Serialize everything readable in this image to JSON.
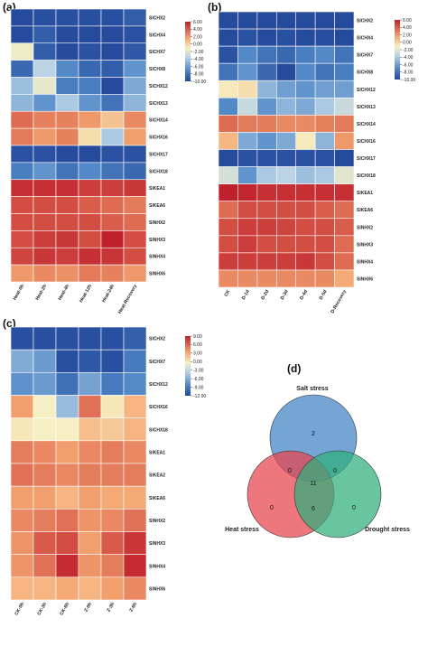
{
  "panels": {
    "a": {
      "label": "(a)",
      "columns": [
        "Heat-0h",
        "Heat-2h",
        "Heat-4h",
        "Heat-12h",
        "Heat-24h",
        "Heat-Recovery"
      ],
      "rows": [
        "SlCHX2",
        "SlCHX4",
        "SlCHX7",
        "SlCHX8",
        "SlCHX12",
        "SlCHX13",
        "SlCHX14",
        "SlCHX16",
        "SlCHX17",
        "SlCHX18",
        "SlKEA1",
        "SlKEA6",
        "SlNHX2",
        "SlNHX3",
        "SlNHX4",
        "SlNHX6"
      ],
      "values": [
        [
          -9.8,
          -9.6,
          -9.6,
          -9.6,
          -9.6,
          -9.0
        ],
        [
          -9.8,
          -9.0,
          -9.8,
          -9.8,
          -9.8,
          -9.5
        ],
        [
          -1.5,
          -9.0,
          -9.8,
          -9.5,
          -9.8,
          -9.2
        ],
        [
          -8.5,
          -3.5,
          -7.0,
          -8.5,
          -9.0,
          -6.5
        ],
        [
          -4.5,
          -1.8,
          -7.5,
          -7.5,
          -9.8,
          -5.5
        ],
        [
          -5.0,
          -6.5,
          -4.0,
          -6.5,
          -8.0,
          -5.0
        ],
        [
          3.5,
          2.8,
          2.8,
          2.0,
          0.5,
          2.5
        ],
        [
          3.0,
          2.0,
          2.8,
          -0.5,
          -4.0,
          1.8
        ],
        [
          -9.5,
          -9.5,
          -9.8,
          -9.8,
          -9.5,
          -9.5
        ],
        [
          -7.5,
          -6.5,
          -8.0,
          -7.0,
          -8.0,
          -8.5
        ],
        [
          5.5,
          5.5,
          5.5,
          5.0,
          5.0,
          5.2
        ],
        [
          4.5,
          4.5,
          4.5,
          4.0,
          3.5,
          3.0
        ],
        [
          4.5,
          4.5,
          4.5,
          4.5,
          4.0,
          3.5
        ],
        [
          4.5,
          5.0,
          5.2,
          4.5,
          6.0,
          4.5
        ],
        [
          4.8,
          5.2,
          5.0,
          5.5,
          5.3,
          4.5
        ],
        [
          2.0,
          2.5,
          2.3,
          3.0,
          2.8,
          2.0
        ]
      ],
      "scale": {
        "min": -10,
        "max": 6,
        "ticks": [
          "6.00",
          "4.00",
          "2.00",
          "0.00",
          "-2.00",
          "-4.00",
          "-6.00",
          "-8.00",
          "-10.00"
        ]
      }
    },
    "b": {
      "label": "(b)",
      "columns": [
        "CK",
        "D-1d",
        "D-2d",
        "D-3d",
        "D-4d",
        "D-5d",
        "D-Recovery"
      ],
      "rows": [
        "SlCHX2",
        "SlCHX4",
        "SlCHX7",
        "SlCHX8",
        "SlCHX12",
        "SlCHX13",
        "SlCHX14",
        "SlCHX16",
        "SlCHX17",
        "SlCHX18",
        "SlKEA1",
        "SlKEA6",
        "SlNHX2",
        "SlNHX3",
        "SlNHX4",
        "SlNHX6"
      ],
      "values": [
        [
          -9.8,
          -9.8,
          -9.8,
          -9.8,
          -9.8,
          -9.8,
          -9.8
        ],
        [
          -9.8,
          -9.5,
          -9.8,
          -9.6,
          -9.8,
          -9.7,
          -9.8
        ],
        [
          -9.5,
          -7.0,
          -8.0,
          -8.5,
          -7.5,
          -7.0,
          -8.0
        ],
        [
          -8.0,
          -6.5,
          -8.5,
          -9.8,
          -7.0,
          -8.0,
          -7.5
        ],
        [
          -1.0,
          -0.5,
          -5.0,
          -6.0,
          -6.5,
          -6.0,
          -6.0
        ],
        [
          -7.0,
          -3.0,
          -6.5,
          -5.0,
          -5.5,
          -4.0,
          -3.0
        ],
        [
          3.5,
          3.0,
          3.0,
          2.5,
          2.5,
          2.8,
          3.0
        ],
        [
          1.0,
          -5.5,
          -6.5,
          -5.5,
          -1.0,
          -5.0,
          2.0
        ],
        [
          -9.8,
          -9.5,
          -9.5,
          -9.5,
          -9.5,
          -9.5,
          -9.8
        ],
        [
          -2.5,
          -6.5,
          -4.0,
          -3.5,
          -4.5,
          -4.0,
          -2.0
        ],
        [
          6.0,
          5.8,
          5.5,
          5.5,
          5.5,
          5.5,
          5.5
        ],
        [
          3.5,
          4.5,
          4.5,
          4.5,
          4.5,
          4.0,
          3.5
        ],
        [
          4.5,
          5.0,
          5.0,
          4.8,
          4.5,
          4.5,
          4.0
        ],
        [
          4.5,
          5.0,
          4.5,
          4.5,
          4.5,
          4.5,
          3.5
        ],
        [
          5.0,
          5.0,
          5.0,
          5.0,
          5.2,
          4.5,
          3.5
        ],
        [
          2.5,
          2.5,
          2.5,
          2.5,
          2.5,
          2.5,
          1.5
        ]
      ],
      "scale": {
        "min": -10,
        "max": 6,
        "ticks": [
          "6.00",
          "4.00",
          "2.00",
          "0.00",
          "-2.00",
          "-4.00",
          "-6.00",
          "-8.00",
          "-10.00"
        ]
      }
    },
    "c": {
      "label": "(c)",
      "columns": [
        "CK-0h",
        "CK-3h",
        "CK-6h",
        "Z-0h",
        "Z-3h",
        "Z-6h"
      ],
      "rows": [
        "SlCHX2",
        "SlCHX7",
        "SlCHX12",
        "SlCHX16",
        "SlCHX18",
        "SlKEA1",
        "SlKEA2",
        "SlKEA6",
        "SlNHX2",
        "SlNHX3",
        "SlNHX4",
        "SlNHX6"
      ],
      "values": [
        [
          -11.5,
          -11.5,
          -11.5,
          -11.5,
          -11.5,
          -10.5
        ],
        [
          -6.0,
          -7.0,
          -11.5,
          -11.0,
          -11.5,
          -9.0
        ],
        [
          -7.5,
          -7.0,
          -9.5,
          -6.5,
          -9.0,
          -8.0
        ],
        [
          3.5,
          -0.5,
          -5.0,
          5.5,
          0.0,
          2.5
        ],
        [
          0.0,
          -0.5,
          -0.5,
          2.0,
          1.5,
          2.5
        ],
        [
          5.0,
          4.5,
          3.5,
          4.5,
          5.0,
          4.5
        ],
        [
          5.5,
          5.0,
          4.5,
          5.0,
          5.0,
          5.0
        ],
        [
          3.5,
          3.5,
          2.5,
          3.5,
          3.0,
          3.0
        ],
        [
          4.5,
          5.0,
          5.5,
          4.0,
          4.5,
          5.5
        ],
        [
          4.0,
          6.5,
          7.0,
          3.5,
          6.5,
          8.0
        ],
        [
          4.0,
          5.5,
          8.5,
          4.0,
          5.0,
          8.5
        ],
        [
          2.5,
          2.5,
          3.0,
          2.5,
          3.5,
          4.5
        ]
      ],
      "scale": {
        "min": -12,
        "max": 9,
        "ticks": [
          "9.00",
          "6.00",
          "3.00",
          "0.00",
          "-3.00",
          "-6.00",
          "-9.00",
          "-12.00"
        ]
      }
    },
    "d": {
      "label": "(d)",
      "sets": [
        {
          "name": "Salt stress",
          "color": "#3f82c5"
        },
        {
          "name": "Heat stress",
          "color": "#e8434c"
        },
        {
          "name": "Drought stress",
          "color": "#2fae7c"
        }
      ],
      "counts": {
        "salt_only": "2",
        "heat_only": "0",
        "drought_only": "0",
        "salt_heat": "0",
        "salt_drought": "0",
        "heat_drought": "6",
        "all": "11"
      }
    }
  }
}
